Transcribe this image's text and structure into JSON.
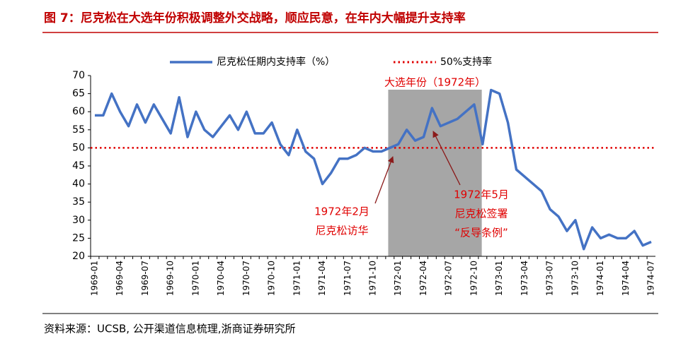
{
  "chart_data": {
    "type": "line",
    "title": "图 7：尼克松在大选年份积极调整外交战略，顺应民意，在年内大幅提升支持率",
    "source": "资料来源：UCSB, 公开渠道信息梳理,浙商证券研究所",
    "categories": [
      "1969-01",
      null,
      null,
      "1969-04",
      null,
      null,
      "1969-07",
      null,
      null,
      "1969-10",
      null,
      null,
      "1970-01",
      null,
      null,
      "1970-04",
      null,
      null,
      "1970-07",
      null,
      null,
      "1970-10",
      null,
      null,
      "1971-01",
      null,
      null,
      "1971-04",
      null,
      null,
      "1971-07",
      null,
      null,
      "1971-10",
      null,
      null,
      "1972-01",
      null,
      null,
      "1972-04",
      null,
      null,
      "1972-07",
      null,
      null,
      "1972-10",
      null,
      null,
      "1973-01",
      null,
      null,
      "1973-04",
      null,
      null,
      "1973-07",
      null,
      null,
      "1973-10",
      null,
      null,
      "1974-01",
      null,
      null,
      "1974-04",
      null,
      null,
      "1974-07"
    ],
    "series": [
      {
        "name": "尼克松任期内支持率（%）",
        "color": "#4472c4",
        "values": [
          59,
          59,
          65,
          60,
          56,
          62,
          57,
          62,
          58,
          54,
          64,
          53,
          60,
          55,
          53,
          56,
          59,
          55,
          60,
          54,
          54,
          57,
          51,
          48,
          55,
          49,
          47,
          40,
          43,
          47,
          47,
          48,
          50,
          49,
          49,
          50,
          51,
          55,
          52,
          53,
          61,
          56,
          57,
          58,
          60,
          62,
          51,
          66,
          65,
          57,
          44,
          42,
          40,
          38,
          33,
          31,
          27,
          30,
          22,
          28,
          25,
          26,
          25,
          25,
          27,
          23,
          24
        ]
      }
    ],
    "reference": {
      "name": "50%支持率",
      "value": 50,
      "color": "#e00000"
    },
    "shade_label": "大选年份（1972年）",
    "shade_color": "#a6a6a6",
    "annotations": [
      {
        "lines": [
          "1972年2月",
          "尼克松访华"
        ]
      },
      {
        "lines": [
          "1972年5月",
          "尼克松签署",
          "“反导条例”"
        ]
      }
    ],
    "ylim": [
      20,
      70
    ],
    "yticks": [
      20,
      25,
      30,
      35,
      40,
      45,
      50,
      55,
      60,
      65,
      70
    ]
  }
}
